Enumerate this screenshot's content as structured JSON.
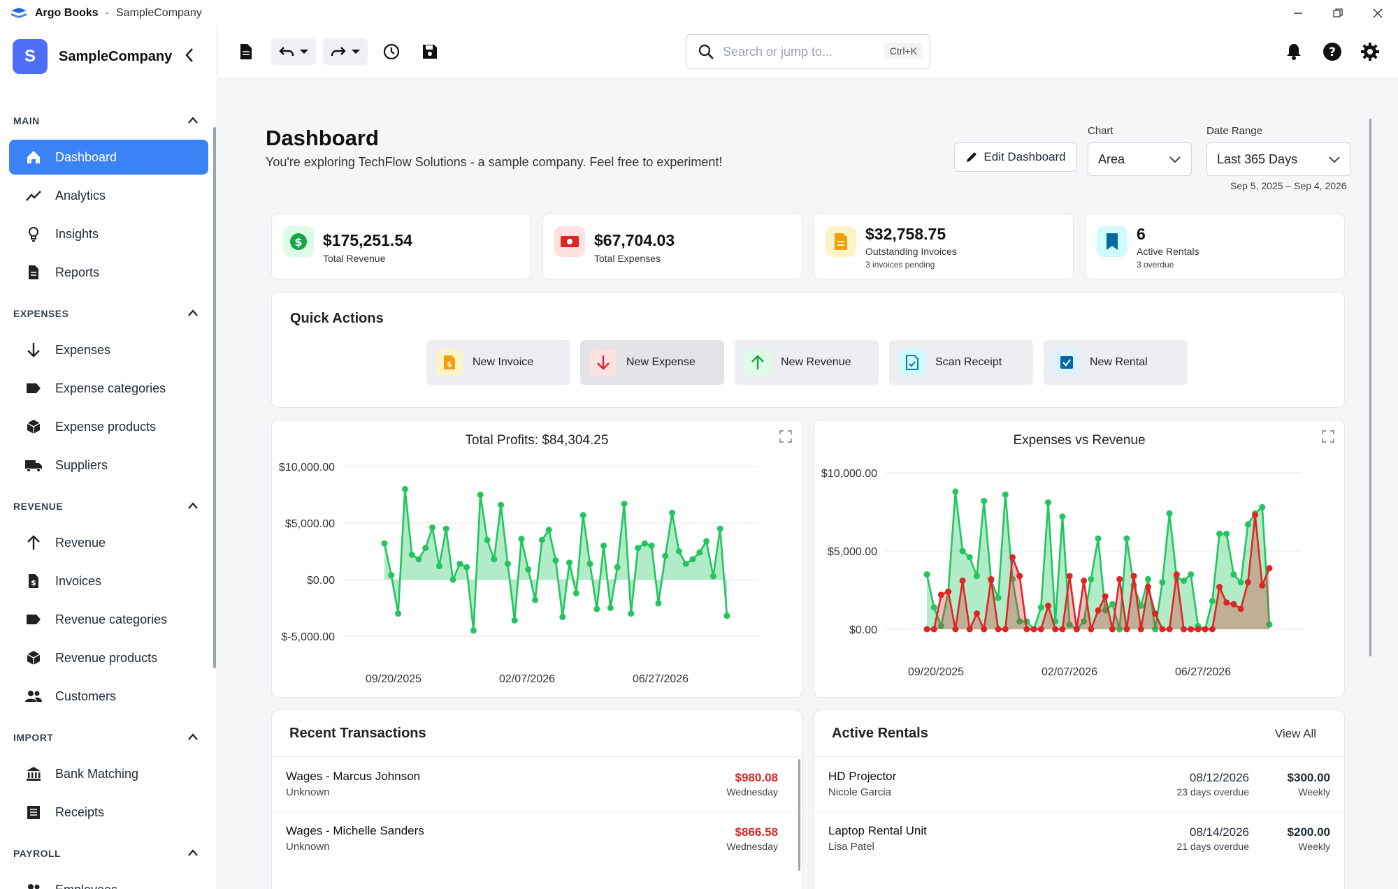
{
  "window": {
    "app_name": "Argo Books",
    "separator": "-",
    "company": "SampleCompany"
  },
  "sidebar": {
    "avatar_letter": "S",
    "company": "SampleCompany",
    "sections": {
      "main": "MAIN",
      "expenses": "EXPENSES",
      "revenue": "REVENUE",
      "import": "IMPORT",
      "payroll": "PAYROLL"
    },
    "items": {
      "dashboard": "Dashboard",
      "analytics": "Analytics",
      "insights": "Insights",
      "reports": "Reports",
      "expenses": "Expenses",
      "expense_categories": "Expense categories",
      "expense_products": "Expense products",
      "suppliers": "Suppliers",
      "revenue": "Revenue",
      "invoices": "Invoices",
      "revenue_categories": "Revenue categories",
      "revenue_products": "Revenue products",
      "customers": "Customers",
      "bank_matching": "Bank Matching",
      "receipts": "Receipts",
      "employees": "Employees"
    }
  },
  "toolbar": {
    "search_placeholder": "Search or jump to...",
    "search_shortcut": "Ctrl+K"
  },
  "header": {
    "title": "Dashboard",
    "subtitle": "You're exploring TechFlow Solutions - a sample company. Feel free to experiment!",
    "edit_label": "Edit Dashboard",
    "chart_label": "Chart",
    "chart_value": "Area",
    "range_label": "Date Range",
    "range_value": "Last 365 Days",
    "range_dates": "Sep 5, 2025 – Sep 4, 2026"
  },
  "stats": [
    {
      "value": "$175,251.54",
      "label": "Total Revenue",
      "sub": "",
      "color": "#16a34a"
    },
    {
      "value": "$67,704.03",
      "label": "Total Expenses",
      "sub": "",
      "color": "#dc2626"
    },
    {
      "value": "$32,758.75",
      "label": "Outstanding Invoices",
      "sub": "3 invoices pending",
      "color": "#f59e0b"
    },
    {
      "value": "6",
      "label": "Active Rentals",
      "sub": "3 overdue",
      "color": "#0284c7"
    }
  ],
  "quick_actions": {
    "title": "Quick Actions",
    "buttons": [
      "New Invoice",
      "New Expense",
      "New Revenue",
      "Scan Receipt",
      "New Rental"
    ]
  },
  "chart_data": [
    {
      "type": "area",
      "title": "Total Profits: $84,304.25",
      "ylim": [
        -5000,
        10000
      ],
      "y_ticks": [
        "$10,000.00",
        "$5,000.00",
        "$0.00",
        "$-5,000.00"
      ],
      "x_ticks": [
        "09/20/2025",
        "02/07/2026",
        "06/27/2026"
      ],
      "series": [
        {
          "color": "#22c55e",
          "values": [
            3200,
            400,
            -3000,
            8000,
            2200,
            1800,
            2800,
            4600,
            1200,
            4500,
            0,
            1400,
            1100,
            -4500,
            7500,
            3500,
            1800,
            6600,
            1400,
            -3600,
            3600,
            900,
            -1800,
            3500,
            4400,
            1700,
            -3300,
            1500,
            -1200,
            5700,
            1400,
            -2600,
            3000,
            -2500,
            1100,
            6700,
            -3000,
            2800,
            3200,
            3000,
            -2100,
            2100,
            5900,
            2500,
            1400,
            1800,
            2400,
            3400,
            300,
            4500,
            -3200
          ]
        }
      ]
    },
    {
      "type": "area",
      "title": "Expenses vs Revenue",
      "ylim": [
        0,
        10000
      ],
      "y_ticks": [
        "$10,000.00",
        "$5,000.00",
        "$0.00"
      ],
      "x_ticks": [
        "09/20/2025",
        "02/07/2026",
        "06/27/2026"
      ],
      "series": [
        {
          "color": "#22c55e",
          "values": [
            3500,
            1400,
            200,
            2400,
            8800,
            5000,
            4600,
            3400,
            8200,
            3100,
            2000,
            8600,
            3200,
            500,
            500,
            0,
            1400,
            8100,
            500,
            7200,
            300,
            0,
            500,
            3200,
            5800,
            1200,
            1600,
            0,
            5800,
            2800,
            1500,
            3200,
            0,
            3000,
            7400,
            3300,
            3100,
            3500,
            200,
            0,
            1800,
            6100,
            6100,
            3500,
            3000,
            6700,
            7400,
            7800,
            300
          ]
        },
        {
          "color": "#dc2626",
          "values": [
            0,
            0,
            2200,
            2400,
            0,
            3100,
            0,
            1000,
            0,
            3200,
            0,
            0,
            4600,
            3400,
            0,
            0,
            0,
            1500,
            0,
            0,
            3400,
            0,
            3100,
            0,
            1200,
            2100,
            0,
            3200,
            0,
            3400,
            0,
            2700,
            1000,
            0,
            0,
            3500,
            0,
            0,
            0,
            0,
            0,
            2700,
            1700,
            1600,
            1300,
            3000,
            7300,
            2800,
            3900
          ]
        }
      ]
    }
  ],
  "recent": {
    "title": "Recent Transactions",
    "rows": [
      {
        "name": "Wages - Marcus Johnson",
        "sub": "Unknown",
        "amount": "$980.08",
        "day": "Wednesday"
      },
      {
        "name": "Wages - Michelle Sanders",
        "sub": "Unknown",
        "amount": "$866.58",
        "day": "Wednesday"
      }
    ]
  },
  "rentals": {
    "title": "Active Rentals",
    "view_all": "View All",
    "rows": [
      {
        "item": "HD Projector",
        "customer": "Nicole Garcia",
        "date": "08/12/2026",
        "overdue": "23 days overdue",
        "price": "$300.00",
        "period": "Weekly"
      },
      {
        "item": "Laptop Rental Unit",
        "customer": "Lisa Patel",
        "date": "08/14/2026",
        "overdue": "21 days overdue",
        "price": "$200.00",
        "period": "Weekly"
      }
    ]
  }
}
